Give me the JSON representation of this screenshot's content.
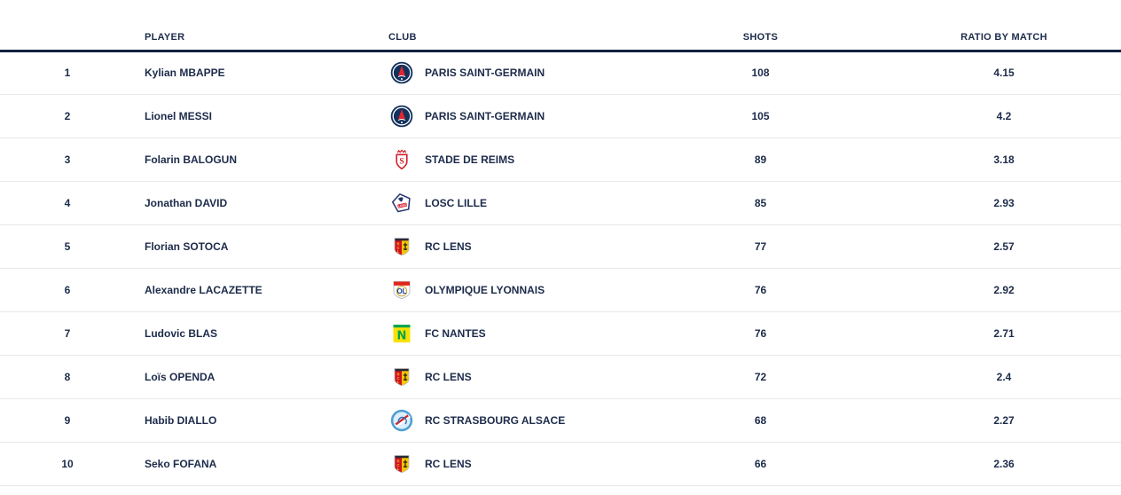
{
  "table": {
    "columns": {
      "rank": "",
      "player": "PLAYER",
      "club": "CLUB",
      "shots": "SHOTS",
      "ratio": "RATIO BY MATCH"
    },
    "rows": [
      {
        "rank": "1",
        "player": "Kylian MBAPPE",
        "club": "PARIS SAINT-GERMAIN",
        "club_icon": "psg-crest",
        "shots": "108",
        "ratio": "4.15"
      },
      {
        "rank": "2",
        "player": "Lionel MESSI",
        "club": "PARIS SAINT-GERMAIN",
        "club_icon": "psg-crest",
        "shots": "105",
        "ratio": "4.2"
      },
      {
        "rank": "3",
        "player": "Folarin BALOGUN",
        "club": "STADE DE REIMS",
        "club_icon": "reims-crest",
        "shots": "89",
        "ratio": "3.18"
      },
      {
        "rank": "4",
        "player": "Jonathan DAVID",
        "club": "LOSC LILLE",
        "club_icon": "lille-crest",
        "shots": "85",
        "ratio": "2.93"
      },
      {
        "rank": "5",
        "player": "Florian SOTOCA",
        "club": "RC LENS",
        "club_icon": "lens-crest",
        "shots": "77",
        "ratio": "2.57"
      },
      {
        "rank": "6",
        "player": "Alexandre LACAZETTE",
        "club": "OLYMPIQUE LYONNAIS",
        "club_icon": "lyon-crest",
        "shots": "76",
        "ratio": "2.92"
      },
      {
        "rank": "7",
        "player": "Ludovic BLAS",
        "club": "FC NANTES",
        "club_icon": "nantes-crest",
        "shots": "76",
        "ratio": "2.71"
      },
      {
        "rank": "8",
        "player": "Loïs OPENDA",
        "club": "RC LENS",
        "club_icon": "lens-crest",
        "shots": "72",
        "ratio": "2.4"
      },
      {
        "rank": "9",
        "player": "Habib DIALLO",
        "club": "RC STRASBOURG ALSACE",
        "club_icon": "strasbourg-crest",
        "shots": "68",
        "ratio": "2.27"
      },
      {
        "rank": "10",
        "player": "Seko FOFANA",
        "club": "RC LENS",
        "club_icon": "lens-crest",
        "shots": "66",
        "ratio": "2.36"
      }
    ]
  },
  "colors": {
    "text": "#1c2b4a",
    "header_rule": "#0d2240",
    "row_divider": "#e8e8e8"
  }
}
